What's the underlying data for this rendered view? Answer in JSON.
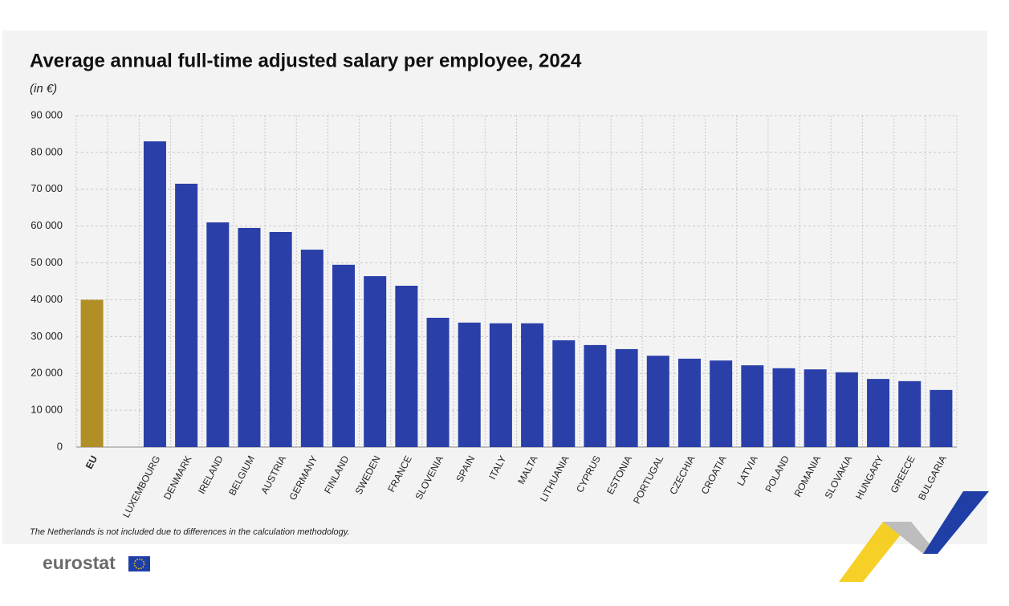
{
  "chart_data": {
    "type": "bar",
    "title": "Average annual full-time adjusted salary per employee, 2024",
    "subtitle": "(in €)",
    "categories": [
      "EU",
      null,
      "LUXEMBOURG",
      "DENMARK",
      "IRELAND",
      "BELGIUM",
      "AUSTRIA",
      "GERMANY",
      "FINLAND",
      "SWEDEN",
      "FRANCE",
      "SLOVENIA",
      "SPAIN",
      "ITALY",
      "MALTA",
      "LITHUANIA",
      "CYPRUS",
      "ESTONIA",
      "PORTUGAL",
      "CZECHIA",
      "CROATIA",
      "LATVIA",
      "POLAND",
      "ROMANIA",
      "SLOVAKIA",
      "HUNGARY",
      "GREECE",
      "BULGARIA"
    ],
    "values": [
      40000,
      null,
      83000,
      71500,
      61000,
      59500,
      58400,
      53600,
      49500,
      46400,
      43800,
      35100,
      33800,
      33600,
      33600,
      29000,
      27700,
      26600,
      24800,
      24000,
      23500,
      22200,
      21400,
      21100,
      20300,
      18500,
      17900,
      15500
    ],
    "colors": [
      "#b08f26",
      null,
      "#2a3fa8",
      "#2a3fa8",
      "#2a3fa8",
      "#2a3fa8",
      "#2a3fa8",
      "#2a3fa8",
      "#2a3fa8",
      "#2a3fa8",
      "#2a3fa8",
      "#2a3fa8",
      "#2a3fa8",
      "#2a3fa8",
      "#2a3fa8",
      "#2a3fa8",
      "#2a3fa8",
      "#2a3fa8",
      "#2a3fa8",
      "#2a3fa8",
      "#2a3fa8",
      "#2a3fa8",
      "#2a3fa8",
      "#2a3fa8",
      "#2a3fa8",
      "#2a3fa8",
      "#2a3fa8",
      "#2a3fa8"
    ],
    "ylim": [
      0,
      90000
    ],
    "yticks": [
      0,
      {
        "value": 10000,
        "label": "10 000"
      },
      {
        "value": 20000,
        "label": "20 000"
      },
      {
        "value": 30000,
        "label": "30 000"
      },
      {
        "value": 40000,
        "label": "40 000"
      },
      {
        "value": 50000,
        "label": "50 000"
      },
      {
        "value": 60000,
        "label": "60 000"
      },
      {
        "value": 70000,
        "label": "70 000"
      },
      {
        "value": 80000,
        "label": "80 000"
      },
      {
        "value": 90000,
        "label": "90 000"
      }
    ],
    "grid": true,
    "footnote": "The Netherlands is not included due to differences in the calculation methodology.",
    "logo": "eurostat"
  }
}
